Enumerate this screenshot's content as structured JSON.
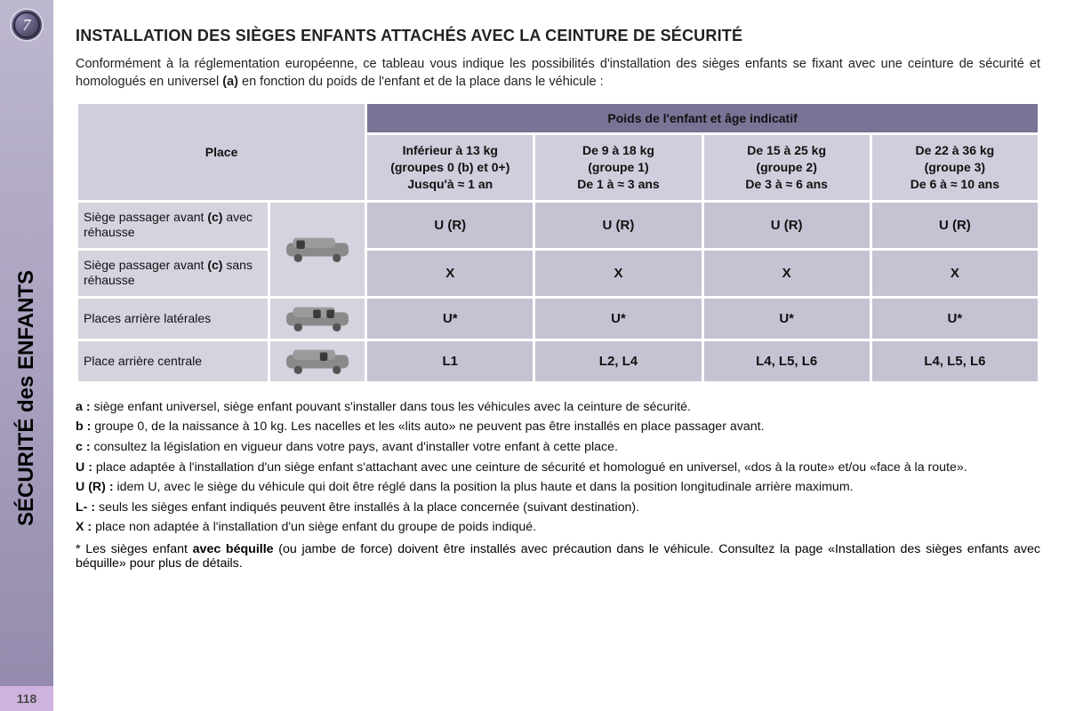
{
  "page": {
    "number": "118",
    "chapter_badge": "7",
    "sidebar_text": "SÉCURITÉ des ENFANTS",
    "colors": {
      "sidebar_top": "#bdb7ce",
      "sidebar_bottom": "#9289ac",
      "table_header_dark": "#7a7395",
      "table_header_light": "#d0cddc",
      "table_rowlabel": "#d6d3df",
      "table_cell": "#c6c2d3",
      "pagetab": "#cdb4de"
    }
  },
  "title": "INSTALLATION DES SIÈGES ENFANTS ATTACHÉS AVEC LA CEINTURE DE SÉCURITÉ",
  "intro_parts": {
    "p1": "Conformément à la réglementation européenne, ce tableau vous indique les possibilités d'installation des sièges enfants se fixant avec une ceinture de sécurité et homologués en universel ",
    "bold": "(a)",
    "p2": " en fonction du poids de l'enfant et de la place dans le véhicule :"
  },
  "table": {
    "super_header": "Poids de l'enfant et âge indicatif",
    "place_header": "Place",
    "col_place_width_pct": 20,
    "col_icon_width_pct": 10,
    "col_group_width_pct": 17.5,
    "groups": [
      {
        "line1": "Inférieur à 13 kg",
        "line2": "(groupes 0 (b) et 0+)",
        "line3": "Jusqu'à ≈ 1 an"
      },
      {
        "line1": "De 9 à 18 kg",
        "line2": "(groupe 1)",
        "line3": "De 1 à ≈ 3 ans"
      },
      {
        "line1": "De 15 à 25 kg",
        "line2": "(groupe 2)",
        "line3": "De 3 à ≈ 6 ans"
      },
      {
        "line1": "De 22 à 36 kg",
        "line2": "(groupe 3)",
        "line3": "De 6 à ≈ 10 ans"
      }
    ],
    "rows": [
      {
        "label_html": "Siège passager avant <b>(c)</b> avec réhausse",
        "icon": "front",
        "cells": [
          "U (R)",
          "U (R)",
          "U (R)",
          "U (R)"
        ],
        "has_icon": false
      },
      {
        "label_html": "Siège passager avant <b>(c)</b> sans réhausse",
        "icon": "front",
        "cells": [
          "X",
          "X",
          "X",
          "X"
        ],
        "has_icon": true
      },
      {
        "label_html": "Places arrière latérales",
        "icon": "rear_sides",
        "cells": [
          "U*",
          "U*",
          "U*",
          "U*"
        ],
        "has_icon": true
      },
      {
        "label_html": "Place arrière centrale",
        "icon": "rear_center",
        "cells": [
          "L1",
          "L2, L4",
          "L4, L5, L6",
          "L4, L5, L6"
        ],
        "has_icon": true
      }
    ]
  },
  "notes": [
    {
      "key": "a :",
      "text": "siège enfant universel, siège enfant pouvant s'installer dans tous les véhicules avec la ceinture de sécurité."
    },
    {
      "key": "b :",
      "text": "groupe 0, de la naissance à 10 kg. Les nacelles et les «lits auto» ne peuvent pas être installés en place passager avant."
    },
    {
      "key": "c :",
      "text": "consultez la législation en vigueur dans votre pays, avant d'installer votre enfant à cette place."
    },
    {
      "key": "U :",
      "text": "place adaptée à l'installation d'un siège enfant s'attachant avec une ceinture de sécurité et homologué en universel, «dos à la route» et/ou «face à la route»."
    },
    {
      "key": "U (R) :",
      "text": "idem U, avec le siège du véhicule qui doit être réglé dans la position la plus haute et dans la position longitudinale arrière maximum."
    },
    {
      "key": "L- :",
      "text": "seuls les sièges enfant indiqués peuvent être installés à la place concernée (suivant destination)."
    },
    {
      "key": "X :",
      "text": "place non adaptée à l'installation d'un siège enfant du groupe de poids indiqué."
    }
  ],
  "footnote": {
    "star": "*",
    "part1": " Les sièges enfant ",
    "bold": "avec béquille",
    "part2": " (ou jambe de force) doivent être installés avec précaution dans le véhicule. Consultez la page «Installation des sièges enfants avec béquille» pour plus de détails."
  }
}
